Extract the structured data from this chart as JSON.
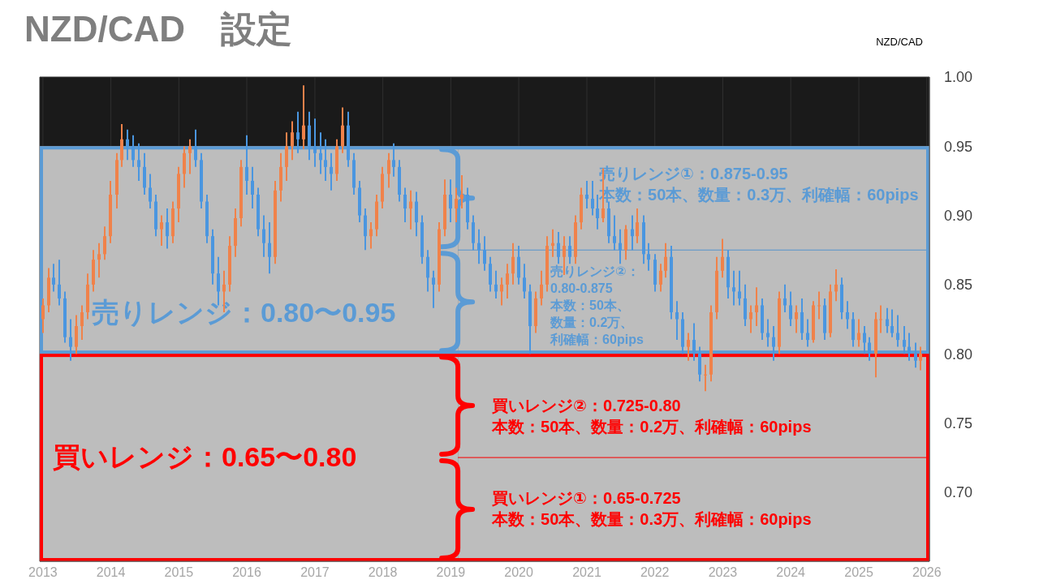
{
  "chart_data": {
    "type": "candlestick",
    "title": "NZD/CAD　設定",
    "subtitle": "NZD/CAD",
    "x": [
      "2013-01",
      "2013-02",
      "2013-03",
      "2013-04",
      "2013-05",
      "2013-06",
      "2013-07",
      "2013-08",
      "2013-09",
      "2013-10",
      "2013-11",
      "2013-12",
      "2014-01",
      "2014-02",
      "2014-03",
      "2014-04",
      "2014-05",
      "2014-06",
      "2014-07",
      "2014-08",
      "2014-09",
      "2014-10",
      "2014-11",
      "2014-12",
      "2015-01",
      "2015-02",
      "2015-03",
      "2015-04",
      "2015-05",
      "2015-06",
      "2015-07",
      "2015-08",
      "2015-09",
      "2015-10",
      "2015-11",
      "2015-12",
      "2016-01",
      "2016-02",
      "2016-03",
      "2016-04",
      "2016-05",
      "2016-06",
      "2016-07",
      "2016-08",
      "2016-09",
      "2016-10",
      "2016-11",
      "2016-12",
      "2017-01",
      "2017-02",
      "2017-03",
      "2017-04",
      "2017-05",
      "2017-06",
      "2017-07",
      "2017-08",
      "2017-09",
      "2017-10",
      "2017-11",
      "2017-12",
      "2018-01",
      "2018-02",
      "2018-03",
      "2018-04",
      "2018-05",
      "2018-06",
      "2018-07",
      "2018-08",
      "2018-09",
      "2018-10",
      "2018-11",
      "2018-12",
      "2019-01",
      "2019-02",
      "2019-03",
      "2019-04",
      "2019-05",
      "2019-06",
      "2019-07",
      "2019-08",
      "2019-09",
      "2019-10",
      "2019-11",
      "2019-12",
      "2020-01",
      "2020-02",
      "2020-03",
      "2020-04",
      "2020-05",
      "2020-06",
      "2020-07",
      "2020-08",
      "2020-09",
      "2020-10",
      "2020-11",
      "2020-12",
      "2021-01",
      "2021-02",
      "2021-03",
      "2021-04",
      "2021-05",
      "2021-06",
      "2021-07",
      "2021-08",
      "2021-09",
      "2021-10",
      "2021-11",
      "2021-12",
      "2022-01",
      "2022-02",
      "2022-03",
      "2022-04",
      "2022-05",
      "2022-06",
      "2022-07",
      "2022-08",
      "2022-09",
      "2022-10",
      "2022-11",
      "2022-12",
      "2023-01",
      "2023-02",
      "2023-03",
      "2023-04",
      "2023-05",
      "2023-06",
      "2023-07",
      "2023-08",
      "2023-09",
      "2023-10",
      "2023-11",
      "2023-12",
      "2024-01",
      "2024-02",
      "2024-03",
      "2024-04",
      "2024-05",
      "2024-06",
      "2024-07",
      "2024-08",
      "2024-09",
      "2024-10",
      "2024-11",
      "2024-12",
      "2025-01",
      "2025-02",
      "2025-03",
      "2025-04",
      "2025-05",
      "2025-06",
      "2025-07",
      "2025-08",
      "2025-09",
      "2025-10",
      "2025-11",
      "2025-12"
    ],
    "ohlc": [
      [
        0.825,
        0.84,
        0.815,
        0.835
      ],
      [
        0.835,
        0.862,
        0.83,
        0.855
      ],
      [
        0.855,
        0.865,
        0.845,
        0.85
      ],
      [
        0.85,
        0.868,
        0.835,
        0.84
      ],
      [
        0.84,
        0.845,
        0.808,
        0.812
      ],
      [
        0.812,
        0.825,
        0.795,
        0.805
      ],
      [
        0.805,
        0.828,
        0.8,
        0.82
      ],
      [
        0.82,
        0.835,
        0.81,
        0.83
      ],
      [
        0.83,
        0.858,
        0.825,
        0.85
      ],
      [
        0.85,
        0.875,
        0.845,
        0.868
      ],
      [
        0.868,
        0.88,
        0.855,
        0.872
      ],
      [
        0.872,
        0.892,
        0.868,
        0.885
      ],
      [
        0.885,
        0.925,
        0.88,
        0.915
      ],
      [
        0.915,
        0.945,
        0.905,
        0.94
      ],
      [
        0.94,
        0.966,
        0.935,
        0.955
      ],
      [
        0.955,
        0.962,
        0.94,
        0.95
      ],
      [
        0.95,
        0.958,
        0.935,
        0.94
      ],
      [
        0.94,
        0.952,
        0.925,
        0.935
      ],
      [
        0.935,
        0.945,
        0.915,
        0.92
      ],
      [
        0.92,
        0.93,
        0.905,
        0.91
      ],
      [
        0.91,
        0.915,
        0.885,
        0.89
      ],
      [
        0.89,
        0.9,
        0.878,
        0.895
      ],
      [
        0.895,
        0.905,
        0.876,
        0.885
      ],
      [
        0.885,
        0.91,
        0.88,
        0.905
      ],
      [
        0.905,
        0.935,
        0.895,
        0.93
      ],
      [
        0.93,
        0.95,
        0.92,
        0.945
      ],
      [
        0.945,
        0.955,
        0.93,
        0.95
      ],
      [
        0.95,
        0.962,
        0.935,
        0.94
      ],
      [
        0.94,
        0.945,
        0.905,
        0.91
      ],
      [
        0.91,
        0.915,
        0.88,
        0.885
      ],
      [
        0.885,
        0.89,
        0.85,
        0.858
      ],
      [
        0.858,
        0.87,
        0.835,
        0.845
      ],
      [
        0.845,
        0.86,
        0.83,
        0.85
      ],
      [
        0.85,
        0.885,
        0.845,
        0.878
      ],
      [
        0.878,
        0.905,
        0.87,
        0.898
      ],
      [
        0.898,
        0.94,
        0.892,
        0.935
      ],
      [
        0.935,
        0.958,
        0.915,
        0.925
      ],
      [
        0.925,
        0.935,
        0.905,
        0.915
      ],
      [
        0.915,
        0.92,
        0.885,
        0.89
      ],
      [
        0.89,
        0.9,
        0.87,
        0.88
      ],
      [
        0.88,
        0.895,
        0.858,
        0.87
      ],
      [
        0.87,
        0.925,
        0.865,
        0.918
      ],
      [
        0.918,
        0.945,
        0.91,
        0.935
      ],
      [
        0.935,
        0.96,
        0.925,
        0.95
      ],
      [
        0.95,
        0.968,
        0.94,
        0.96
      ],
      [
        0.96,
        0.975,
        0.945,
        0.955
      ],
      [
        0.955,
        0.994,
        0.948,
        0.965
      ],
      [
        0.965,
        0.975,
        0.94,
        0.95
      ],
      [
        0.95,
        0.97,
        0.935,
        0.945
      ],
      [
        0.945,
        0.96,
        0.93,
        0.94
      ],
      [
        0.94,
        0.955,
        0.925,
        0.935
      ],
      [
        0.935,
        0.945,
        0.918,
        0.93
      ],
      [
        0.93,
        0.955,
        0.925,
        0.95
      ],
      [
        0.95,
        0.978,
        0.945,
        0.965
      ],
      [
        0.965,
        0.975,
        0.935,
        0.94
      ],
      [
        0.94,
        0.945,
        0.915,
        0.92
      ],
      [
        0.92,
        0.925,
        0.895,
        0.9
      ],
      [
        0.9,
        0.905,
        0.875,
        0.885
      ],
      [
        0.885,
        0.895,
        0.876,
        0.89
      ],
      [
        0.89,
        0.915,
        0.885,
        0.91
      ],
      [
        0.91,
        0.935,
        0.905,
        0.93
      ],
      [
        0.93,
        0.945,
        0.92,
        0.94
      ],
      [
        0.94,
        0.952,
        0.928,
        0.935
      ],
      [
        0.935,
        0.94,
        0.91,
        0.915
      ],
      [
        0.915,
        0.92,
        0.895,
        0.905
      ],
      [
        0.905,
        0.918,
        0.89,
        0.91
      ],
      [
        0.91,
        0.917,
        0.885,
        0.895
      ],
      [
        0.895,
        0.9,
        0.865,
        0.87
      ],
      [
        0.87,
        0.875,
        0.845,
        0.855
      ],
      [
        0.855,
        0.86,
        0.833,
        0.85
      ],
      [
        0.85,
        0.895,
        0.845,
        0.89
      ],
      [
        0.89,
        0.926,
        0.885,
        0.915
      ],
      [
        0.915,
        0.926,
        0.895,
        0.905
      ],
      [
        0.905,
        0.92,
        0.895,
        0.912
      ],
      [
        0.912,
        0.929,
        0.905,
        0.915
      ],
      [
        0.915,
        0.92,
        0.89,
        0.895
      ],
      [
        0.895,
        0.9,
        0.875,
        0.88
      ],
      [
        0.88,
        0.89,
        0.865,
        0.875
      ],
      [
        0.875,
        0.885,
        0.86,
        0.865
      ],
      [
        0.865,
        0.87,
        0.845,
        0.85
      ],
      [
        0.85,
        0.86,
        0.84,
        0.845
      ],
      [
        0.845,
        0.855,
        0.835,
        0.85
      ],
      [
        0.85,
        0.865,
        0.84,
        0.858
      ],
      [
        0.858,
        0.88,
        0.85,
        0.87
      ],
      [
        0.87,
        0.878,
        0.85,
        0.855
      ],
      [
        0.855,
        0.865,
        0.84,
        0.845
      ],
      [
        0.845,
        0.85,
        0.8,
        0.82
      ],
      [
        0.82,
        0.845,
        0.815,
        0.84
      ],
      [
        0.84,
        0.86,
        0.835,
        0.85
      ],
      [
        0.85,
        0.885,
        0.845,
        0.878
      ],
      [
        0.878,
        0.89,
        0.87,
        0.88
      ],
      [
        0.88,
        0.888,
        0.865,
        0.87
      ],
      [
        0.87,
        0.885,
        0.857,
        0.878
      ],
      [
        0.878,
        0.885,
        0.865,
        0.87
      ],
      [
        0.87,
        0.9,
        0.865,
        0.895
      ],
      [
        0.895,
        0.92,
        0.89,
        0.915
      ],
      [
        0.915,
        0.925,
        0.905,
        0.912
      ],
      [
        0.912,
        0.925,
        0.9,
        0.905
      ],
      [
        0.905,
        0.915,
        0.89,
        0.898
      ],
      [
        0.898,
        0.934,
        0.895,
        0.905
      ],
      [
        0.905,
        0.91,
        0.88,
        0.885
      ],
      [
        0.885,
        0.9,
        0.875,
        0.88
      ],
      [
        0.88,
        0.89,
        0.865,
        0.875
      ],
      [
        0.875,
        0.893,
        0.868,
        0.89
      ],
      [
        0.89,
        0.9,
        0.875,
        0.885
      ],
      [
        0.885,
        0.905,
        0.88,
        0.895
      ],
      [
        0.895,
        0.9,
        0.865,
        0.872
      ],
      [
        0.872,
        0.88,
        0.86,
        0.868
      ],
      [
        0.868,
        0.872,
        0.845,
        0.85
      ],
      [
        0.85,
        0.865,
        0.845,
        0.86
      ],
      [
        0.86,
        0.88,
        0.855,
        0.87
      ],
      [
        0.87,
        0.878,
        0.825,
        0.83
      ],
      [
        0.83,
        0.838,
        0.81,
        0.825
      ],
      [
        0.825,
        0.83,
        0.8,
        0.805
      ],
      [
        0.805,
        0.815,
        0.795,
        0.81
      ],
      [
        0.81,
        0.822,
        0.795,
        0.8
      ],
      [
        0.8,
        0.805,
        0.78,
        0.785
      ],
      [
        0.785,
        0.792,
        0.773,
        0.785
      ],
      [
        0.785,
        0.835,
        0.78,
        0.83
      ],
      [
        0.83,
        0.87,
        0.825,
        0.86
      ],
      [
        0.86,
        0.883,
        0.855,
        0.87
      ],
      [
        0.87,
        0.875,
        0.84,
        0.848
      ],
      [
        0.848,
        0.86,
        0.835,
        0.845
      ],
      [
        0.845,
        0.86,
        0.835,
        0.84
      ],
      [
        0.84,
        0.85,
        0.82,
        0.825
      ],
      [
        0.825,
        0.835,
        0.815,
        0.83
      ],
      [
        0.83,
        0.848,
        0.82,
        0.835
      ],
      [
        0.835,
        0.84,
        0.81,
        0.815
      ],
      [
        0.815,
        0.825,
        0.805,
        0.812
      ],
      [
        0.812,
        0.82,
        0.795,
        0.805
      ],
      [
        0.805,
        0.845,
        0.8,
        0.84
      ],
      [
        0.84,
        0.85,
        0.83,
        0.835
      ],
      [
        0.835,
        0.845,
        0.82,
        0.825
      ],
      [
        0.825,
        0.835,
        0.815,
        0.83
      ],
      [
        0.83,
        0.84,
        0.81,
        0.815
      ],
      [
        0.815,
        0.825,
        0.805,
        0.81
      ],
      [
        0.81,
        0.838,
        0.808,
        0.835
      ],
      [
        0.835,
        0.845,
        0.825,
        0.835
      ],
      [
        0.835,
        0.84,
        0.81,
        0.815
      ],
      [
        0.815,
        0.85,
        0.812,
        0.845
      ],
      [
        0.845,
        0.861,
        0.838,
        0.85
      ],
      [
        0.85,
        0.855,
        0.825,
        0.83
      ],
      [
        0.83,
        0.838,
        0.818,
        0.825
      ],
      [
        0.825,
        0.83,
        0.805,
        0.81
      ],
      [
        0.81,
        0.825,
        0.805,
        0.815
      ],
      [
        0.815,
        0.82,
        0.8,
        0.808
      ],
      [
        0.808,
        0.812,
        0.795,
        0.8
      ],
      [
        0.8,
        0.83,
        0.783,
        0.825
      ],
      [
        0.825,
        0.835,
        0.815,
        0.825
      ],
      [
        0.825,
        0.833,
        0.815,
        0.82
      ],
      [
        0.82,
        0.832,
        0.812,
        0.815
      ],
      [
        0.815,
        0.828,
        0.805,
        0.81
      ],
      [
        0.81,
        0.82,
        0.8,
        0.805
      ],
      [
        0.805,
        0.815,
        0.795,
        0.8
      ],
      [
        0.8,
        0.808,
        0.79,
        0.795
      ],
      [
        0.795,
        0.805,
        0.788,
        0.8
      ]
    ],
    "xlim": [
      "2012-12-15",
      "2026-01-15"
    ],
    "xticks": [
      "2013",
      "2014",
      "2015",
      "2016",
      "2017",
      "2018",
      "2019",
      "2020",
      "2021",
      "2022",
      "2023",
      "2024",
      "2025",
      "2026"
    ],
    "ylim": [
      0.65,
      1.0
    ],
    "yticks": [
      {
        "value": 0.7,
        "label": "0.70"
      },
      0.75,
      {
        "value": 0.8,
        "label": "0.80"
      },
      0.85,
      {
        "value": 0.9,
        "label": "0.90"
      },
      0.95,
      {
        "value": 1.0,
        "label": "1.00"
      }
    ],
    "grid": true,
    "bands": [
      {
        "axis": "y",
        "from": 0.8,
        "to": 0.95,
        "label": "売りレンジ：0.80〜0.95",
        "color": "#bdbdbd"
      },
      {
        "axis": "y",
        "from": 0.875,
        "to": 0.95,
        "label": "売りレンジ①：0.875-0.95\n本数：50本、数量：0.3万、利確幅：60pips",
        "color": "#bdbdbd"
      },
      {
        "axis": "y",
        "from": 0.8,
        "to": 0.875,
        "label": "売りレンジ②：0.80-0.875\n本数：50本、数量：0.2万、利確幅：60pips",
        "color": "#bdbdbd"
      },
      {
        "axis": "y",
        "from": 0.65,
        "to": 0.8,
        "label": "買いレンジ：0.65〜0.80",
        "color": "#bdbdbd"
      },
      {
        "axis": "y",
        "from": 0.725,
        "to": 0.8,
        "label": "買いレンジ②：0.725-0.80\n本数：50本、数量：0.2万、利確幅：60pips",
        "color": "#bdbdbd"
      },
      {
        "axis": "y",
        "from": 0.65,
        "to": 0.725,
        "label": "買いレンジ①：0.65-0.725\n本数：50本、数量：0.3万、利確幅：60pips",
        "color": "#bdbdbd"
      }
    ],
    "ref_lines": [
      {
        "axis": "y",
        "value": 0.875,
        "color": "#5b9bd5"
      },
      {
        "axis": "y",
        "value": 0.725,
        "color": "#ff0000"
      }
    ]
  }
}
